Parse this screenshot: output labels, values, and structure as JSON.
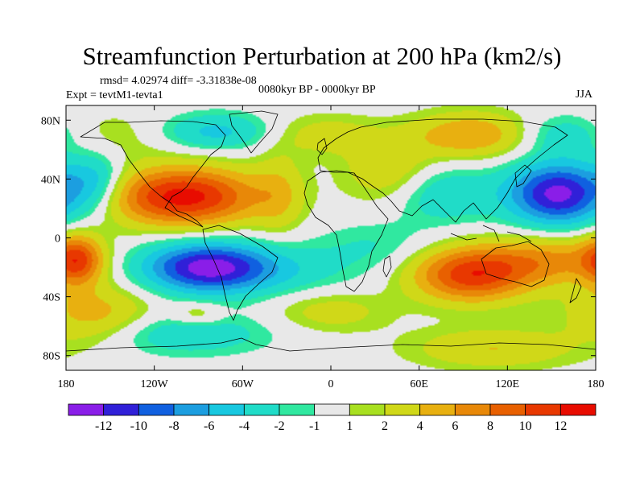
{
  "chart_data": {
    "type": "heatmap",
    "title": "Streamfunction Perturbation at 200 hPa (km2/s)",
    "stats_text": "rmsd= 4.02974 diff= -3.31838e-08",
    "left_label": "Expt = tevtM1-tevta1",
    "center_label": "0080kyr BP - 0000kyr BP",
    "right_label": "JJA",
    "x_ticks": [
      {
        "value": -180,
        "label": "180"
      },
      {
        "value": -120,
        "label": "120W"
      },
      {
        "value": -60,
        "label": "60W"
      },
      {
        "value": 0,
        "label": "0"
      },
      {
        "value": 60,
        "label": "60E"
      },
      {
        "value": 120,
        "label": "120E"
      },
      {
        "value": 180,
        "label": "180"
      }
    ],
    "y_ticks": [
      {
        "value": 80,
        "label": "80N"
      },
      {
        "value": 40,
        "label": "40N"
      },
      {
        "value": 0,
        "label": "0"
      },
      {
        "value": -40,
        "label": "40S"
      },
      {
        "value": -80,
        "label": "80S"
      }
    ],
    "xlim": [
      -180,
      180
    ],
    "ylim": [
      -90,
      90
    ],
    "colorbar": {
      "levels": [
        "-12",
        "-10",
        "-8",
        "-6",
        "-4",
        "-2",
        "-1",
        "1",
        "2",
        "4",
        "6",
        "8",
        "10",
        "12"
      ],
      "colors": [
        "#8a1ee8",
        "#3020d8",
        "#1060e0",
        "#1c9ee0",
        "#18c8e0",
        "#20dcc8",
        "#30e8a0",
        "#e8e8e8",
        "#a8e020",
        "#d0d818",
        "#e8b010",
        "#e88808",
        "#e86000",
        "#e83800",
        "#e80c00"
      ]
    },
    "anomalies": [
      {
        "lon": -100,
        "lat": 28,
        "slon": 36,
        "slat": 14,
        "value": 13
      },
      {
        "lon": -160,
        "lat": 38,
        "slon": 14,
        "slat": 14,
        "value": -5
      },
      {
        "lon": -150,
        "lat": 70,
        "slon": 40,
        "slat": 12,
        "value": 2
      },
      {
        "lon": -80,
        "lat": 72,
        "slon": 28,
        "slat": 9,
        "value": -5
      },
      {
        "lon": -35,
        "lat": 30,
        "slon": 12,
        "slat": 20,
        "value": 3
      },
      {
        "lon": -5,
        "lat": 70,
        "slon": 26,
        "slat": 10,
        "value": 3
      },
      {
        "lon": 40,
        "lat": 45,
        "slon": 22,
        "slat": 16,
        "value": 4
      },
      {
        "lon": 75,
        "lat": 30,
        "slon": 25,
        "slat": 14,
        "value": -4
      },
      {
        "lon": 95,
        "lat": 70,
        "slon": 28,
        "slat": 11,
        "value": 6
      },
      {
        "lon": 155,
        "lat": 30,
        "slon": 24,
        "slat": 15,
        "value": -13
      },
      {
        "lon": 160,
        "lat": 70,
        "slon": 22,
        "slat": 10,
        "value": -4
      },
      {
        "lon": -85,
        "lat": -20,
        "slon": 30,
        "slat": 12,
        "value": -12
      },
      {
        "lon": -40,
        "lat": -22,
        "slon": 40,
        "slat": 12,
        "value": -3
      },
      {
        "lon": 30,
        "lat": -5,
        "slon": 28,
        "slat": 12,
        "value": -2
      },
      {
        "lon": -172,
        "lat": -15,
        "slon": 12,
        "slat": 12,
        "value": 9
      },
      {
        "lon": 95,
        "lat": -25,
        "slon": 28,
        "slat": 13,
        "value": 11
      },
      {
        "lon": 150,
        "lat": -15,
        "slon": 32,
        "slat": 12,
        "value": 6
      },
      {
        "lon": -160,
        "lat": -52,
        "slon": 28,
        "slat": 14,
        "value": 5
      },
      {
        "lon": 0,
        "lat": -50,
        "slon": 28,
        "slat": 10,
        "value": 3
      },
      {
        "lon": 110,
        "lat": -75,
        "slon": 40,
        "slat": 10,
        "value": 4
      },
      {
        "lon": -100,
        "lat": -65,
        "slon": 40,
        "slat": 10,
        "value": -4
      },
      {
        "lon": -90,
        "lat": -52,
        "slon": 12,
        "slat": 6,
        "value": 3
      }
    ]
  }
}
